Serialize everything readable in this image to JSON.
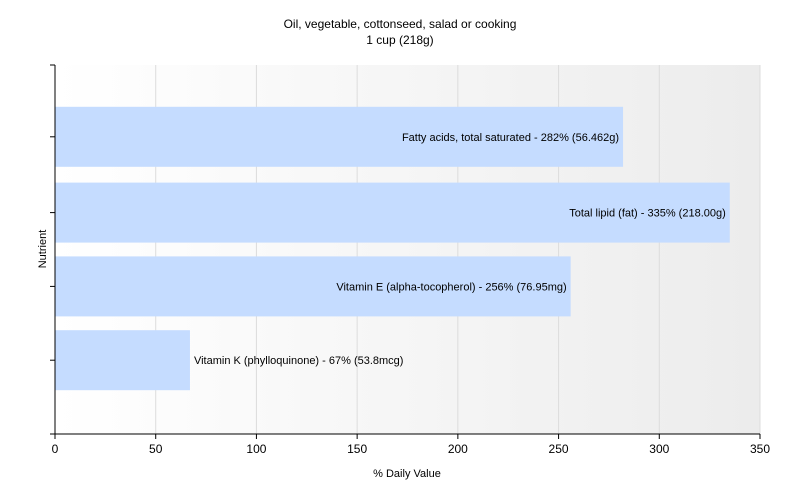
{
  "chart_data": {
    "type": "bar",
    "orientation": "horizontal",
    "title": "Oil, vegetable, cottonseed, salad or cooking",
    "subtitle": "1 cup (218g)",
    "xlabel": "% Daily Value",
    "ylabel": "Nutrient",
    "xlim": [
      0,
      350
    ],
    "xticks": [
      0,
      50,
      100,
      150,
      200,
      250,
      300,
      350
    ],
    "grid": "vertical",
    "bar_color": "#c5dcff",
    "bars": [
      {
        "label": "Fatty acids, total saturated - 282% (56.462g)",
        "value": 282
      },
      {
        "label": "Total lipid (fat) - 335% (218.00g)",
        "value": 335
      },
      {
        "label": "Vitamin E (alpha-tocopherol) - 256% (76.95mg)",
        "value": 256
      },
      {
        "label": "Vitamin K (phylloquinone) - 67% (53.8mcg)",
        "value": 67
      }
    ]
  }
}
